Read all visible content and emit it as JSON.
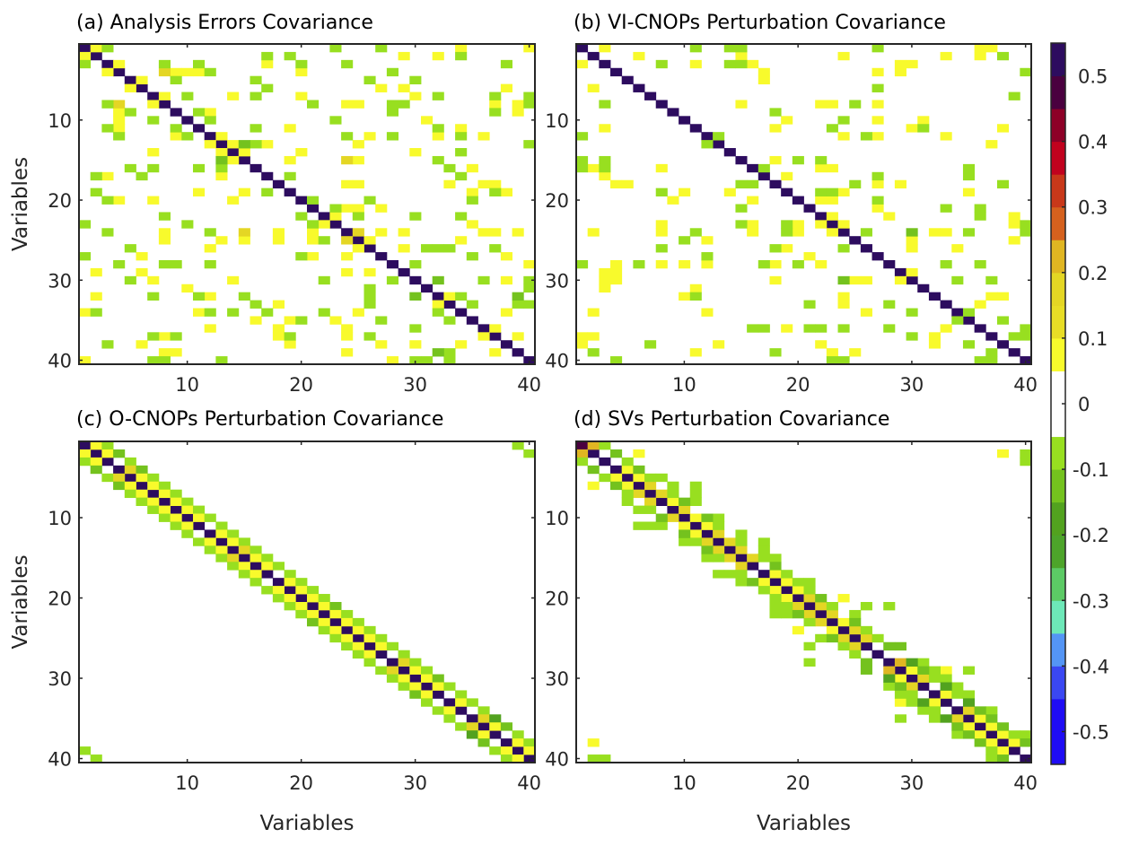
{
  "chart_data": [
    {
      "type": "heatmap",
      "panel": "a",
      "title": "(a) Analysis Errors Covariance",
      "xlabel": "",
      "ylabel": "Variables",
      "x_ticks": [
        "10",
        "20",
        "30",
        "40"
      ],
      "y_ticks": [
        "10",
        "20",
        "30",
        "40"
      ],
      "size": 40,
      "diagonal_value": 0.53,
      "cells": {
        "0.08": "1,2;2,1;3,4;3,17;4,3;4,9;4,10;4,11;4,20;5,6;6,5;7,8;7,14;7,20;8,7;9,4;9,12;10,4;11,4;11,19;12,9;12,13;13,12;13,14;13,17;14,7;14,13;14,15;14,20;15,14;15,19;17,3;17,13;19,11;19,15;20,4;20,7;20,14;1,34;1,40;2,29;2,32;6,27;6,29;6,38;7,30;8,24;8,25;8,37;8,39;9,39;10,31;11,34;12,26;12,32;12,36;13,25;14,30;15,25;16,35;18,24;18,25;18,33;18,36;18,37;19,35;19,38;21,24;21,25;21,27;22,23;23,22;23,35;24,8;24,18;24,21;24,27;24,29;24,36;24,37;24,39;25,8;25,13;25,15;25,18;25,21;25,26;25,34;26,12;26,25;26,29;27,6;27,21;27,24;27,38;28,40;29,2;29,6;29,24;29,26;30,7;30,14;30,38;31,10;32,2;32,12;32,33;33,18;33,32;34,1;34,11;34,25;34,38;35,16;35,19;35,23;36,12;36,18;36,24;36,37;37,8;37,18;37,24;37,36;37,39;38,6;38,19;38,27;38,30;38,34;39,8;39,9;39,24;39,37;40,1;40,28",
        "0.15": "4,8;8,4;15,24;24,15;24,25;25,24",
        "-0.08": "1,3;2,17;2,19;3,1;3,8;3,11;3,20;4,12;5,9;5,16;6,17;7,10;7,16;8,3;9,5;9,11;10,7;10,12;11,3;11,9;11,16;12,4;12,10;13,16;16,5;16,7;16,11;16,13;17,2;17,6;17,19;19,2;19,17;20,3;1,23;1,27;2,34;3,24;3,38;4,28;5,26;5,30;7,32;7,37;7,40;8,21;8,28;8,29;8,40;9,28;9,37;10,23;11,32;12,24;12,28;12,34;13,40;14,34;15,32;16,33;17,34;19,37;20,21;20,26;20,35;21,23;22,8;22,20;22,25;22,30;22,34;23,1;23,10;23,21;24,3;24,12;25,22;26,5;26,31;26,32;26,33;26,37;27,1;27,20;27,35;28,4;28,8;28,9;28,12;28,30;30,5;30,22;30,28;30,36;30,40;31,26;31,40;32,7;32,11;32,15;32,26;32,34;33,16;33,26;33,35;33,39;33,40;34,2;34,12;34,14;34,17;34,22;34,32;35,20;35,27;35,33;36,30;37,7;37,9;37,19;37,26;38,3;39,33;40,7;40,8;40,13;40,30;40,31;40,33",
        "-0.13": "13,15;15,13;30,32;32,30;32,39;39,32"
      }
    },
    {
      "type": "heatmap",
      "panel": "b",
      "title": "(b) VI-CNOPs Perturbation Covariance",
      "xlabel": "",
      "ylabel": "",
      "x_ticks": [
        "10",
        "20",
        "30",
        "40"
      ],
      "y_ticks": [
        "10",
        "20",
        "30",
        "40"
      ],
      "size": 40,
      "diagonal_value": 0.53,
      "cells": {
        "0.08": "1,3;1,36;1,37;2,6;2,15;2,24;2,33;2,36;3,1;3,11;3,16;3,29;3,30;4,17;4,27;4,29;5,17;6,2;8,15;8,22;8,23;8,27;10,19;10,27;10,31;11,3;11,18;11,30;11,38;12,24;12,27;12,33;13,37;15,18;16,2;16,8;16,22;16,23;17,3;17,19;18,4;18,5;18,27;18,29;19,10;19,14;19,24;19,35;20,9;20,16;20,22;20,23;21,27;22,23;22,28;22,39;23,8;23,16;23,20;23,22;23,24;23,39;24,2;24,8;24,16;24,20;24,23;24,32;24,33;25,12;25,30;25,39;26,19;26,30;26,34;27,21;28,4;28,8;28,10;28,12;28,18;28,22;29,3;29,4;29,30;30,3;30,4;30,18;30,25;30,26;30,29;31,3;31,11;32,10;32,24;32,37;32,38;33,24;33,36;34,2;34,12;34,26;36,19;36,33;37,1;37,2;37,32;38,1;38,13;38,22;38,32;39,11;39,23;39,25",
        "-0.08": "1,11;1,14;1,15;1,27;2,38;3,8;3,14;3,15;4,40;6,27;7,39;8,3;8,25;9,18;10,24;11,23;11,31;12,1;12,13;12,26;13,12;15,1;15,3;15,20;15,22;16,1;16,3;16,17;16,35;17,27;17,35;18,15;18,16;18,25;18,38;19,8;19,22;19,23;20,27;21,15;21,33;21,36;22,36;23,15;23,19;23,40;24,11;24,19;24,26;24,35;24,40;25,10;26,8;26,18;26,24;27,12;28,1;28,6;28,17;28,20;28,33;28,36;30,34;30,37;32,11;33,21;33,28;34,30;34,35;35,34;35,38;36,16;36,17;36,21;36,22;36,24;36,28;36,40;37,30;37,39;37,40;38,7;38,35;39,2;39,18;39,37;40,4;40,23;40,24;40,36;40,37",
        "-0.13": "24,30;30,24"
      }
    },
    {
      "type": "heatmap",
      "panel": "c",
      "title": "(c) O-CNOPs Perturbation Covariance",
      "xlabel": "Variables",
      "ylabel": "Variables",
      "x_ticks": [
        "10",
        "20",
        "30",
        "40"
      ],
      "y_ticks": [
        "10",
        "20",
        "30",
        "40"
      ],
      "size": 40,
      "diagonal_value": 0.53,
      "band": {
        "offset_1": 0.08,
        "offset_2": -0.08
      },
      "cells": {
        "0.15": "4,5;5,4;14,15;15,14;28,29;29,28;35,36;36,35",
        "-0.13": "2,4;4,2;4,6;6,4;6,4;21,23;23,21;30,32;32,30;36,38;38,36",
        "-0.18": "35,37;37,35",
        "0": "3,4;4,3;11,12;12,11;17,18;18,17;27,28;28,27;32,33;33,32;35,34;34,35;38,37;37,38",
        "-0.08": "1,39;2,40;39,1;40,2"
      }
    },
    {
      "type": "heatmap",
      "panel": "d",
      "title": "(d) SVs Perturbation Covariance",
      "xlabel": "Variables",
      "ylabel": "",
      "x_ticks": [
        "10",
        "20",
        "30",
        "40"
      ],
      "y_ticks": [
        "10",
        "20",
        "30",
        "40"
      ],
      "size": 40,
      "diagonal_value": 0.53,
      "cells": {
        "0.48": "1,1",
        "0.21": "1,2;2,1;28,29;29,28",
        "0.15": "6,7;7,6;7,8;8,7;9,10;10,9;12,13;13,12;13,14;14,13;14,15;15,14;15,16;16,15;20,21;21,20;21,22;22,21;22,23;23,22;24,25;25,24;25,26;26,25;30,31;31,30;34,35;35,34",
        "0.08": "2,6;2,38;4,5;5,4;5,6;6,5;6,2;8,9;10,11;11,10;11,12;12,11;17,18;18,17;18,19;19,18;19,20;20,19;20,24;23,24;24,20;24,23;29,30;30,29;29,33;32,33;33,29;33,32;35,36;36,35;36,37;37,36;37,38;38,37;38,39;39,38;38,2",
        "-0.08": "1,3;3,1;3,5;2,40;3,40;5,3;5,7;5,8;6,9;6,11;7,5;7,9;7,11;8,5;8,11;9,6;9,7;10,13;11,6;11,7;11,8;11,13;12,15;13,10;13,11;13,15;13,17;14,17;15,12;15,13;15,17;15,18;17,13;17,14;17,15;17,19;18,15;18,20;18,21;19,17;19,21;20,18;21,18;21,19;21,23;21,26;21,28;22,18;22,19;22,25;23,21;24,26;25,22;25,27;26,21;26,24;27,25;28,21;28,31;29,32;29,35;30,32;30,33;31,28;31,34;32,29;32,30;32,34;32,35;33,30;34,31;34,32;34,37;35,29;35,32;37,34;37,39;37,40;39,37;40,2;40,3;40,37",
        "-0.13": "2,4;4,2;4,6;6,4;8,10;10,8;10,12;12,10;14,12;16,18;18,16;20,22;22,20;23,25;25,23;26,28;26,29;28,26;29,26;29,31;31,29;34,36;36,34;35,37;37,35;36,38;38,36;38,40;40,38",
        "-0.18": "28,30;30,28;31,33;33,31;33,35;35,33"
      }
    }
  ],
  "colorbar": {
    "ticks": [
      "0.5",
      "0.4",
      "0.3",
      "0.2",
      "0.1",
      "0",
      "-0.1",
      "-0.2",
      "-0.3",
      "-0.4",
      "-0.5"
    ],
    "range": [
      -0.55,
      0.55
    ],
    "colors": [
      "#1f0cf4",
      "#1b0ef5",
      "#3a47f2",
      "#5495f5",
      "#6de8b8",
      "#5cca65",
      "#4da42a",
      "#52a21f",
      "#74c21e",
      "#9be01e",
      "#ffffff",
      "#ffffff",
      "#f7fa2c",
      "#e8dd26",
      "#e1c322",
      "#dba024",
      "#d4631e",
      "#c8381a",
      "#c1021e",
      "#8d0027",
      "#4a003f",
      "#2d0c5f"
    ],
    "bins": [
      -0.55,
      -0.5,
      -0.45,
      -0.4,
      -0.35,
      -0.3,
      -0.25,
      -0.2,
      -0.15,
      -0.1,
      -0.05,
      0,
      0.05,
      0.1,
      0.15,
      0.2,
      0.25,
      0.3,
      0.35,
      0.4,
      0.45,
      0.5,
      0.55
    ]
  }
}
